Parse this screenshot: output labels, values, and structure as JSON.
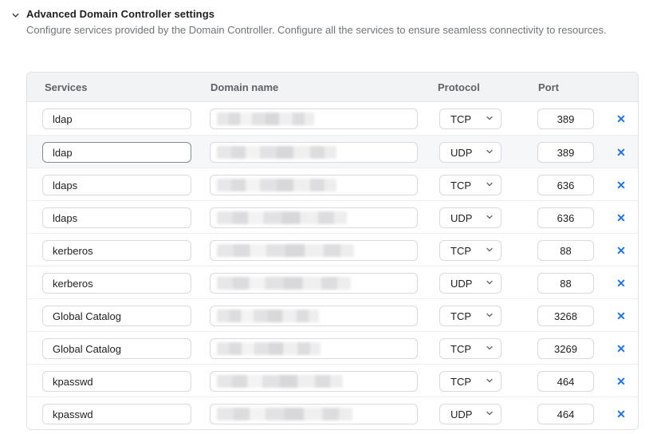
{
  "section": {
    "title": "Advanced Domain Controller settings",
    "description": "Configure services provided by the Domain Controller. Configure all the services to ensure seamless connectivity to resources.",
    "expanded": true
  },
  "table": {
    "headers": [
      "Services",
      "Domain name",
      "Protocol",
      "Port"
    ],
    "rows": [
      {
        "service": "ldap",
        "domain_redacted": true,
        "domain_mask_width": 122,
        "protocol": "TCP",
        "port": "389"
      },
      {
        "service": "ldap",
        "domain_redacted": true,
        "domain_mask_width": 150,
        "protocol": "UDP",
        "port": "389",
        "highlighted": true,
        "service_focused": true
      },
      {
        "service": "ldaps",
        "domain_redacted": true,
        "domain_mask_width": 150,
        "protocol": "TCP",
        "port": "636"
      },
      {
        "service": "ldaps",
        "domain_redacted": true,
        "domain_mask_width": 163,
        "protocol": "UDP",
        "port": "636"
      },
      {
        "service": "kerberos",
        "domain_redacted": true,
        "domain_mask_width": 172,
        "protocol": "TCP",
        "port": "88"
      },
      {
        "service": "kerberos",
        "domain_redacted": true,
        "domain_mask_width": 168,
        "protocol": "UDP",
        "port": "88"
      },
      {
        "service": "Global Catalog",
        "domain_redacted": true,
        "domain_mask_width": 128,
        "protocol": "TCP",
        "port": "3268"
      },
      {
        "service": "Global Catalog",
        "domain_redacted": true,
        "domain_mask_width": 130,
        "protocol": "TCP",
        "port": "3269"
      },
      {
        "service": "kpasswd",
        "domain_redacted": true,
        "domain_mask_width": 158,
        "protocol": "TCP",
        "port": "464"
      },
      {
        "service": "kpasswd",
        "domain_redacted": true,
        "domain_mask_width": 170,
        "protocol": "UDP",
        "port": "464"
      }
    ]
  },
  "icons": {
    "section_chevron": "chevron-down",
    "select_chevron": "chevron-down",
    "delete": "✕"
  },
  "colors": {
    "accent_blue": "#1a73e8",
    "header_bg": "#f2f3f5",
    "highlighted_row_bg": "#f6f7f8",
    "border": "#d7dade",
    "text_primary": "#202124",
    "text_secondary": "#70757a"
  }
}
